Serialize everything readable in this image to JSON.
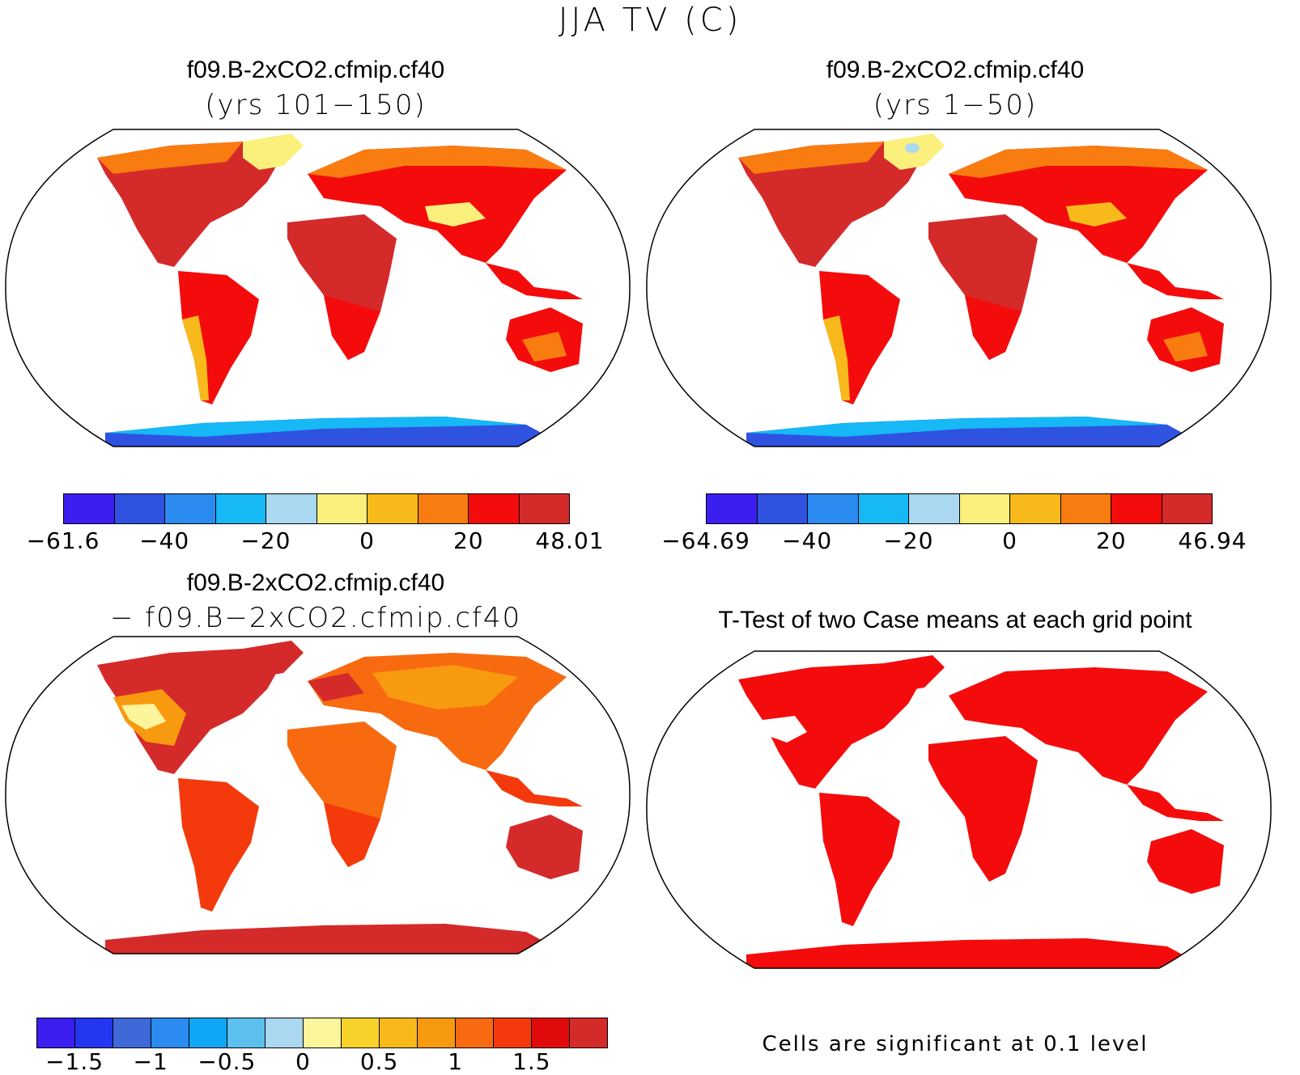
{
  "figure_title": "JJA TV (C)",
  "panels": [
    {
      "title": "f09.B-2xCO2.cfmip.cf40",
      "subtitle": "(yrs 101−150)",
      "colorbar": {
        "colors": [
          "#3b1ff0",
          "#2f52e0",
          "#2b8bf0",
          "#16b8f5",
          "#a9d8f0",
          "#fbf07c",
          "#f8b91b",
          "#f87c10",
          "#f40c0c",
          "#d52a2a"
        ],
        "tick_labels": [
          "−61.6",
          "−40",
          "−20",
          "0",
          "20",
          "48.01"
        ]
      }
    },
    {
      "title": "f09.B-2xCO2.cfmip.cf40",
      "subtitle": "(yrs 1−50)",
      "colorbar": {
        "colors": [
          "#3b1ff0",
          "#2f52e0",
          "#2b8bf0",
          "#16b8f5",
          "#a9d8f0",
          "#fbf07c",
          "#f8b91b",
          "#f87c10",
          "#f40c0c",
          "#d52a2a"
        ],
        "tick_labels": [
          "−64.69",
          "−40",
          "−20",
          "0",
          "20",
          "46.94"
        ]
      }
    },
    {
      "title": "f09.B-2xCO2.cfmip.cf40",
      "subtitle": "− f09.B−2xCO2.cfmip.cf40",
      "colorbar": {
        "colors": [
          "#3b1ff0",
          "#2437f0",
          "#3f68d8",
          "#2b8bf0",
          "#0fa6f5",
          "#5cc0ee",
          "#a9d8f0",
          "#fdf59b",
          "#f7d22a",
          "#f8b91b",
          "#f89a10",
          "#f86a10",
          "#f43a0c",
          "#e00a0a",
          "#d52a2a"
        ],
        "tick_labels": [
          "−1.5",
          "−1",
          "−0.5",
          "0",
          "0.5",
          "1",
          "1.5"
        ]
      }
    },
    {
      "title": "T-Test of two Case means at each grid point",
      "note": "Cells are significant at 0.1 level"
    }
  ],
  "colors": {
    "land_warm": "#d52a2a",
    "land_orange": "#f87c10",
    "land_red": "#f40c0c",
    "greenland": "#fbf07c",
    "antarctica_a": "#2f52e0",
    "antarctica_b": "#16b8f5",
    "ttest_red": "#f40c0c"
  }
}
